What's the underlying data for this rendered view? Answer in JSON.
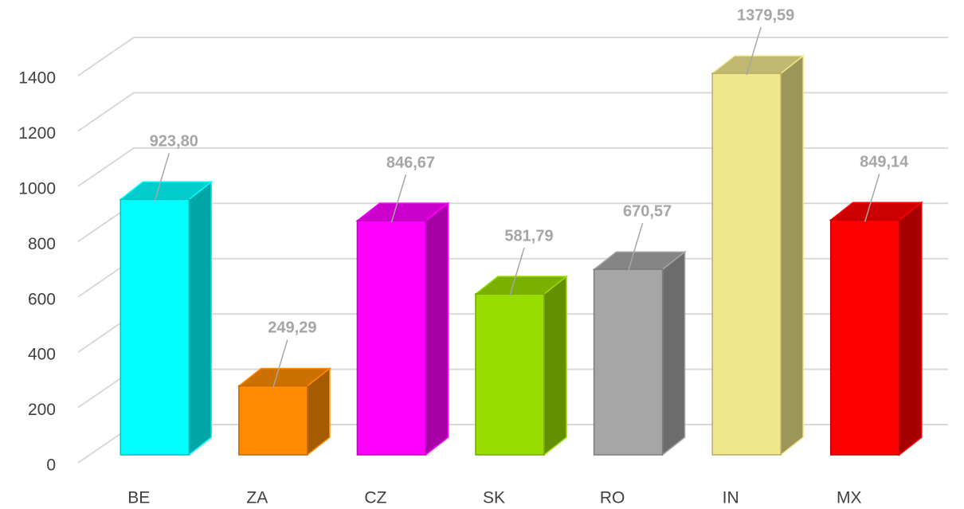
{
  "chart_data": {
    "type": "bar3d",
    "categories": [
      "BE",
      "ZA",
      "CZ",
      "SK",
      "RO",
      "IN",
      "MX"
    ],
    "values": [
      923.8,
      249.29,
      846.67,
      581.79,
      670.57,
      1379.59,
      849.14
    ],
    "value_labels": [
      "923,80",
      "249,29",
      "846,67",
      "581,79",
      "670,57",
      "1379,59",
      "849,14"
    ],
    "colors": [
      "#00ffff",
      "#ff8c00",
      "#ff00ff",
      "#99dd00",
      "#a6a6a6",
      "#f0e68c",
      "#ff0000"
    ],
    "ylim": [
      0,
      1400
    ],
    "yticks": [
      0,
      200,
      400,
      600,
      800,
      1000,
      1200,
      1400
    ],
    "grid": true
  }
}
